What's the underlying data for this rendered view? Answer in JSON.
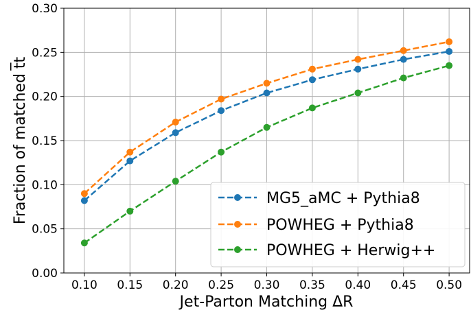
{
  "chart_data": {
    "type": "line",
    "xlabel": "Jet-Parton Matching ΔR",
    "ylabel": "Fraction of matched t̅t",
    "x": [
      0.1,
      0.15,
      0.2,
      0.25,
      0.3,
      0.35,
      0.4,
      0.45,
      0.5
    ],
    "x_tick_labels": [
      "0.10",
      "0.15",
      "0.20",
      "0.25",
      "0.30",
      "0.35",
      "0.40",
      "0.45",
      "0.50"
    ],
    "y_ticks": [
      0.0,
      0.05,
      0.1,
      0.15,
      0.2,
      0.25,
      0.3
    ],
    "y_tick_labels": [
      "0.00",
      "0.05",
      "0.10",
      "0.15",
      "0.20",
      "0.25",
      "0.30"
    ],
    "xlim": [
      0.0775,
      0.5225
    ],
    "ylim": [
      0.0,
      0.3
    ],
    "grid": true,
    "legend_position": "bottom-right",
    "series": [
      {
        "name": "MG5_aMC + Pythia8",
        "color": "#1f77b4",
        "values": [
          0.082,
          0.127,
          0.159,
          0.184,
          0.204,
          0.219,
          0.231,
          0.242,
          0.251
        ]
      },
      {
        "name": "POWHEG + Pythia8",
        "color": "#ff7f0e",
        "values": [
          0.09,
          0.137,
          0.171,
          0.197,
          0.215,
          0.231,
          0.242,
          0.252,
          0.262
        ]
      },
      {
        "name": "POWHEG + Herwig++",
        "color": "#2ca02c",
        "values": [
          0.034,
          0.07,
          0.104,
          0.137,
          0.165,
          0.187,
          0.204,
          0.221,
          0.235
        ]
      }
    ]
  }
}
